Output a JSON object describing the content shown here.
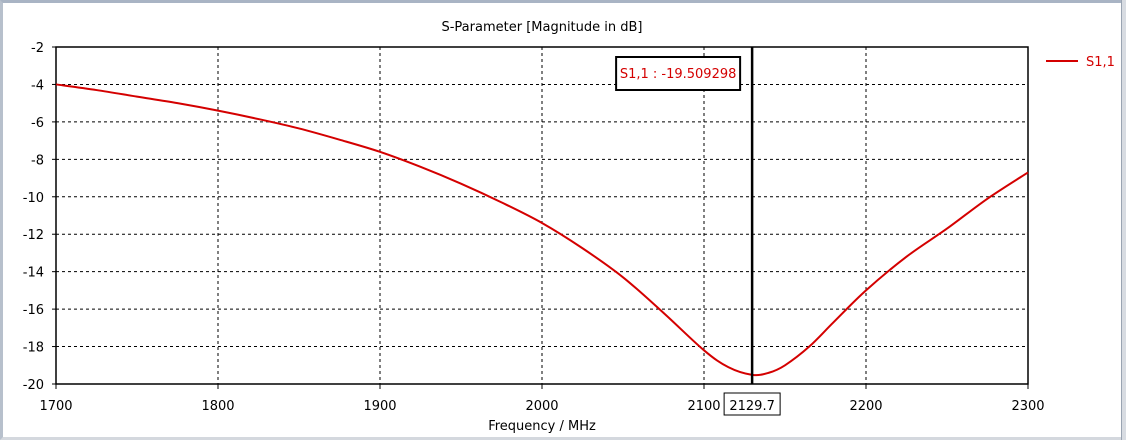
{
  "chart_data": {
    "type": "line",
    "title": "S-Parameter [Magnitude in dB]",
    "xlabel": "Frequency / MHz",
    "ylabel": "",
    "xlim": [
      1700,
      2300
    ],
    "ylim": [
      -20,
      -2
    ],
    "xticks": [
      "1700",
      "1800",
      "1900",
      "2000",
      "2100",
      "2200",
      "2300"
    ],
    "yticks": [
      "-2",
      "-4",
      "-6",
      "-8",
      "-10",
      "-12",
      "-14",
      "-16",
      "-18",
      "-20"
    ],
    "grid": true,
    "legend": {
      "position": "top-right",
      "entries": [
        "S1,1"
      ]
    },
    "series": [
      {
        "name": "S1,1",
        "color": "#d40000",
        "x": [
          1700,
          1725,
          1750,
          1775,
          1800,
          1825,
          1850,
          1875,
          1900,
          1925,
          1950,
          1975,
          2000,
          2025,
          2050,
          2075,
          2100,
          2115,
          2129.7,
          2140,
          2150,
          2165,
          2180,
          2200,
          2225,
          2250,
          2275,
          2300
        ],
        "y": [
          -4.0,
          -4.3,
          -4.65,
          -5.0,
          -5.4,
          -5.85,
          -6.35,
          -6.95,
          -7.6,
          -8.4,
          -9.3,
          -10.3,
          -11.4,
          -12.75,
          -14.3,
          -16.2,
          -18.2,
          -19.1,
          -19.51,
          -19.4,
          -19.0,
          -18.0,
          -16.7,
          -15.0,
          -13.2,
          -11.7,
          -10.1,
          -8.7
        ]
      }
    ],
    "marker": {
      "x": 2129.7,
      "x_label": "2129.7",
      "readout": "S1,1 : -19.509298"
    }
  }
}
